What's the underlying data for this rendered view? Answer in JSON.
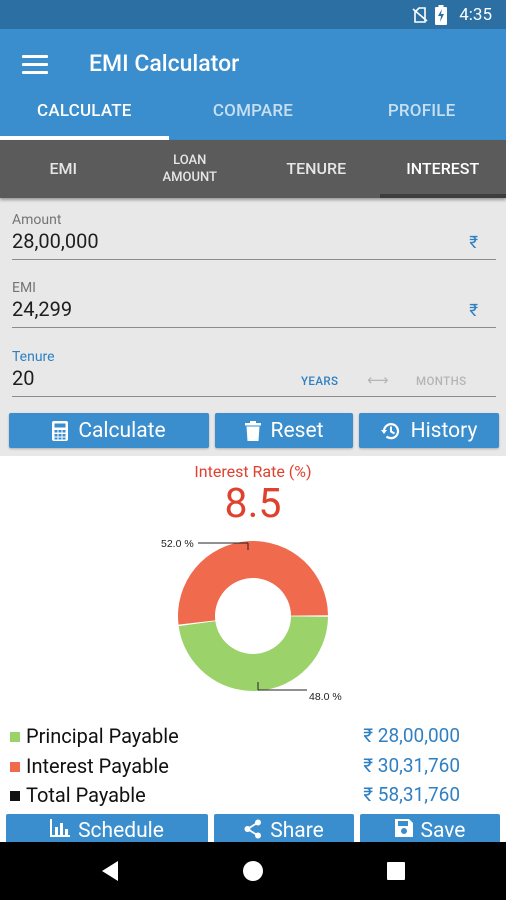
{
  "status_bar": {
    "time": "4:35",
    "icons": [
      "no-sim-icon",
      "battery-charging-icon"
    ]
  },
  "app_bar": {
    "title": "EMI Calculator",
    "menu_icon": "hamburger-menu-icon"
  },
  "tabs": [
    {
      "label": "CALCULATE",
      "active": true
    },
    {
      "label": "COMPARE",
      "active": false
    },
    {
      "label": "PROFILE",
      "active": false
    }
  ],
  "subtabs": [
    {
      "label": "EMI",
      "active": false
    },
    {
      "label": "LOAN AMOUNT",
      "active": false
    },
    {
      "label": "TENURE",
      "active": false
    },
    {
      "label": "INTEREST",
      "active": true
    }
  ],
  "form": {
    "amount": {
      "label": "Amount",
      "value": "28,00,000",
      "currency": "₹"
    },
    "emi": {
      "label": "EMI",
      "value": "24,299",
      "currency": "₹"
    },
    "tenure": {
      "label": "Tenure",
      "value": "20",
      "unit_years": "YEARS",
      "unit_months": "MONTHS",
      "selected_unit": "YEARS"
    }
  },
  "actions": [
    {
      "label": "Calculate",
      "icon": "calculator-icon"
    },
    {
      "label": "Reset",
      "icon": "trash-icon"
    },
    {
      "label": "History",
      "icon": "history-icon"
    }
  ],
  "result": {
    "rate_label": "Interest Rate (%)",
    "rate_value": "8.5",
    "interest_pct_label": "52.0 %",
    "principal_pct_label": "48.0 %"
  },
  "chart_data": {
    "type": "pie",
    "categories": [
      "Principal Payable",
      "Interest Payable"
    ],
    "values": [
      48.0,
      52.0
    ],
    "colors": [
      "#9bd26a",
      "#f06a4d"
    ]
  },
  "summary": [
    {
      "label": "Principal Payable",
      "value": "₹ 28,00,000",
      "color": "#9bd26a"
    },
    {
      "label": "Interest Payable",
      "value": "₹ 30,31,760",
      "color": "#f06a4d"
    },
    {
      "label": "Total Payable",
      "value": "₹ 58,31,760",
      "color": "#111111"
    }
  ],
  "bottom_actions": [
    {
      "label": "Schedule",
      "icon": "bar-chart-icon"
    },
    {
      "label": "Share",
      "icon": "share-icon"
    },
    {
      "label": "Save",
      "icon": "save-icon"
    }
  ],
  "nav_bar": {
    "buttons": [
      "back-icon",
      "home-icon",
      "recents-icon"
    ]
  },
  "colors": {
    "primary": "#3a8ecd",
    "status_bar": "#2b6fa3",
    "accent_red": "#e0412e",
    "link_blue": "#2f80c2"
  }
}
